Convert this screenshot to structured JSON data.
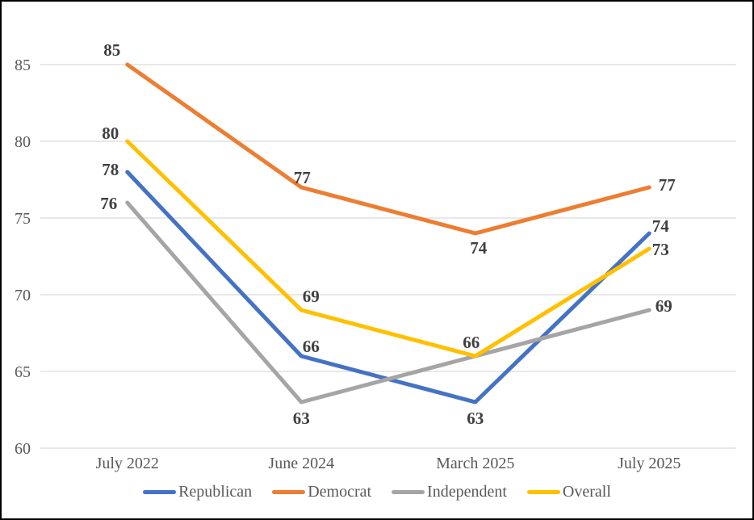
{
  "chart_data": {
    "type": "line",
    "title": "",
    "xlabel": "",
    "ylabel": "",
    "categories": [
      "July 2022",
      "June 2024",
      "March 2025",
      "July 2025"
    ],
    "series": [
      {
        "name": "Republican",
        "color": "#4472C4",
        "values": [
          78,
          66,
          63,
          74
        ],
        "label_offsets": [
          [
            -21,
            -3
          ],
          [
            12,
            -12
          ],
          [
            0,
            20
          ],
          [
            14,
            -9
          ]
        ]
      },
      {
        "name": "Democrat",
        "color": "#ED7D31",
        "values": [
          85,
          77,
          74,
          77
        ],
        "label_offsets": [
          [
            -19,
            -18
          ],
          [
            1,
            -12
          ],
          [
            4,
            18
          ],
          [
            22,
            -3
          ]
        ]
      },
      {
        "name": "Independent",
        "color": "#A5A5A5",
        "values": [
          76,
          63,
          66,
          69
        ],
        "label_offsets": [
          [
            -23,
            1
          ],
          [
            0,
            20
          ],
          null,
          [
            18,
            -5
          ]
        ]
      },
      {
        "name": "Overall",
        "color": "#FFC000",
        "values": [
          80,
          69,
          66,
          73
        ],
        "label_offsets": [
          [
            -21,
            -10
          ],
          [
            12,
            -17
          ],
          [
            -5,
            -17
          ],
          [
            14,
            1
          ]
        ]
      }
    ],
    "y_ticks": [
      60,
      65,
      70,
      75,
      80,
      85
    ],
    "ylim": [
      60,
      85
    ],
    "grid": true,
    "legend_position": "bottom",
    "colors": {
      "gridline": "#D9D9D9",
      "axis_text": "#595959",
      "data_label": "#3F3F3F",
      "frame_border": "#000000",
      "background": "#FFFFFF"
    }
  }
}
